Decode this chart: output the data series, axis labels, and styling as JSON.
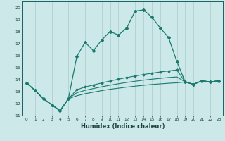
{
  "title": "",
  "xlabel": "Humidex (Indice chaleur)",
  "ylabel": "",
  "background_color": "#cce8e8",
  "grid_color": "#aacccc",
  "line_color": "#1a7a6e",
  "xlim": [
    -0.5,
    23.5
  ],
  "ylim": [
    11,
    20.5
  ],
  "xticks": [
    0,
    1,
    2,
    3,
    4,
    5,
    6,
    7,
    8,
    9,
    10,
    11,
    12,
    13,
    14,
    15,
    16,
    17,
    18,
    19,
    20,
    21,
    22,
    23
  ],
  "yticks": [
    11,
    12,
    13,
    14,
    15,
    16,
    17,
    18,
    19,
    20
  ],
  "line1_x": [
    0,
    1,
    2,
    3,
    4,
    5,
    6,
    7,
    8,
    9,
    10,
    11,
    12,
    13,
    14,
    15,
    16,
    17,
    18,
    19,
    20,
    21,
    22,
    23
  ],
  "line1_y": [
    13.7,
    13.1,
    12.4,
    11.9,
    11.4,
    12.4,
    15.9,
    17.1,
    16.4,
    17.3,
    18.0,
    17.7,
    18.3,
    19.7,
    19.8,
    19.2,
    18.3,
    17.5,
    15.5,
    13.8,
    13.6,
    13.9,
    13.8,
    13.9
  ],
  "line2_x": [
    0,
    1,
    2,
    3,
    4,
    5,
    6,
    7,
    8,
    9,
    10,
    11,
    12,
    13,
    14,
    15,
    16,
    17,
    18,
    19,
    20,
    21,
    22,
    23
  ],
  "line2_y": [
    13.7,
    13.1,
    12.4,
    11.9,
    11.4,
    12.4,
    13.15,
    13.38,
    13.55,
    13.72,
    13.88,
    14.03,
    14.17,
    14.3,
    14.42,
    14.53,
    14.63,
    14.72,
    14.8,
    13.8,
    13.6,
    13.9,
    13.8,
    13.9
  ],
  "line3_x": [
    0,
    1,
    2,
    3,
    4,
    5,
    6,
    7,
    8,
    9,
    10,
    11,
    12,
    13,
    14,
    15,
    16,
    17,
    18,
    19,
    20,
    21,
    22,
    23
  ],
  "line3_y": [
    13.7,
    13.1,
    12.4,
    11.9,
    11.4,
    12.4,
    12.9,
    13.1,
    13.25,
    13.4,
    13.53,
    13.65,
    13.76,
    13.86,
    13.95,
    14.03,
    14.1,
    14.17,
    14.22,
    13.8,
    13.6,
    13.9,
    13.8,
    13.9
  ],
  "line4_x": [
    0,
    1,
    2,
    3,
    4,
    5,
    6,
    7,
    8,
    9,
    10,
    11,
    12,
    13,
    14,
    15,
    16,
    17,
    18,
    19,
    20,
    21,
    22,
    23
  ],
  "line4_y": [
    13.7,
    13.1,
    12.4,
    11.9,
    11.4,
    12.4,
    12.65,
    12.82,
    12.95,
    13.08,
    13.19,
    13.28,
    13.37,
    13.45,
    13.52,
    13.59,
    13.64,
    13.69,
    13.73,
    13.8,
    13.6,
    13.9,
    13.8,
    13.9
  ]
}
